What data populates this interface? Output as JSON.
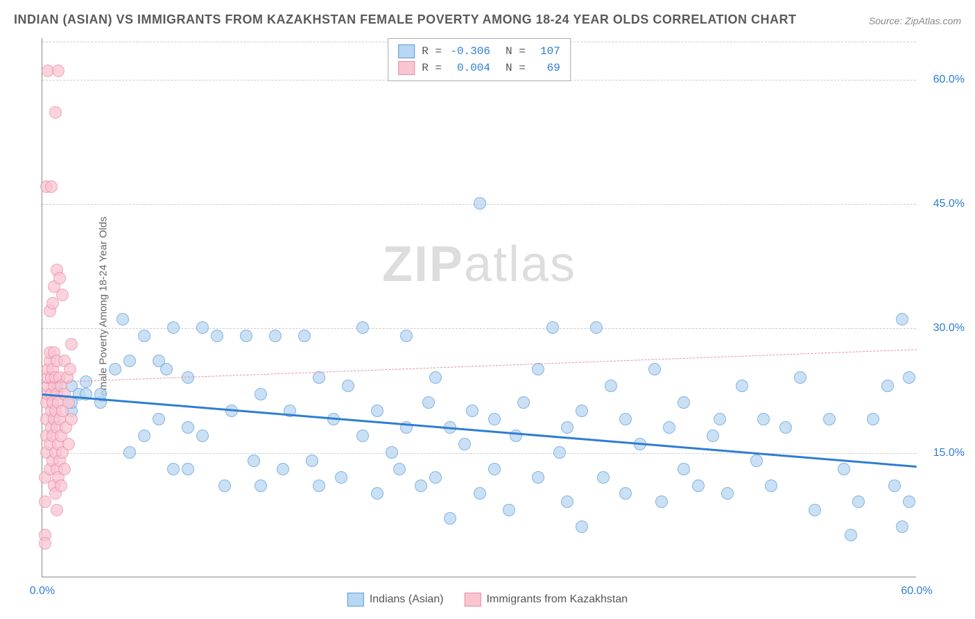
{
  "title": "INDIAN (ASIAN) VS IMMIGRANTS FROM KAZAKHSTAN FEMALE POVERTY AMONG 18-24 YEAR OLDS CORRELATION CHART",
  "source": "Source: ZipAtlas.com",
  "ylabel": "Female Poverty Among 18-24 Year Olds",
  "watermark": "ZIPatlas",
  "chart": {
    "type": "scatter",
    "xlim": [
      0,
      60
    ],
    "ylim": [
      0,
      65
    ],
    "xticks": [
      {
        "v": 0,
        "label": "0.0%",
        "color": "#2d7dd2"
      },
      {
        "v": 60,
        "label": "60.0%",
        "color": "#2d7dd2"
      }
    ],
    "yticks": [
      {
        "v": 15,
        "label": "15.0%",
        "color": "#2d7dd2"
      },
      {
        "v": 30,
        "label": "30.0%",
        "color": "#2d7dd2"
      },
      {
        "v": 45,
        "label": "45.0%",
        "color": "#2d7dd2"
      },
      {
        "v": 60,
        "label": "60.0%",
        "color": "#2d7dd2"
      }
    ],
    "grid_color": "#cccccc",
    "background_color": "#ffffff",
    "point_radius": 9,
    "series": [
      {
        "name": "Indians (Asian)",
        "fill": "#b9d6f2",
        "stroke": "#5b9bd5",
        "R": "-0.306",
        "N": "107",
        "trend": {
          "x1": 0,
          "y1": 22.2,
          "x2": 60,
          "y2": 13.5,
          "color": "#2d7dd2",
          "width": 3,
          "dash": false
        },
        "points": [
          [
            1,
            22
          ],
          [
            1,
            23
          ],
          [
            2,
            20
          ],
          [
            2,
            21
          ],
          [
            2,
            23
          ],
          [
            2.5,
            22
          ],
          [
            3,
            22
          ],
          [
            3,
            23.5
          ],
          [
            4,
            21
          ],
          [
            4,
            22
          ],
          [
            5,
            25
          ],
          [
            5.5,
            31
          ],
          [
            6,
            15
          ],
          [
            6,
            26
          ],
          [
            7,
            17
          ],
          [
            7,
            29
          ],
          [
            8,
            19
          ],
          [
            8,
            26
          ],
          [
            8.5,
            25
          ],
          [
            9,
            13
          ],
          [
            9,
            30
          ],
          [
            10,
            13
          ],
          [
            10,
            18
          ],
          [
            10,
            24
          ],
          [
            11,
            17
          ],
          [
            11,
            30
          ],
          [
            12,
            29
          ],
          [
            12.5,
            11
          ],
          [
            13,
            20
          ],
          [
            14,
            29
          ],
          [
            14.5,
            14
          ],
          [
            15,
            11
          ],
          [
            15,
            22
          ],
          [
            16,
            29
          ],
          [
            16.5,
            13
          ],
          [
            17,
            20
          ],
          [
            18,
            29
          ],
          [
            18.5,
            14
          ],
          [
            19,
            11
          ],
          [
            19,
            24
          ],
          [
            20,
            19
          ],
          [
            20.5,
            12
          ],
          [
            21,
            23
          ],
          [
            22,
            17
          ],
          [
            22,
            30
          ],
          [
            23,
            10
          ],
          [
            23,
            20
          ],
          [
            24,
            15
          ],
          [
            24.5,
            13
          ],
          [
            25,
            18
          ],
          [
            25,
            29
          ],
          [
            26,
            11
          ],
          [
            26.5,
            21
          ],
          [
            27,
            12
          ],
          [
            27,
            24
          ],
          [
            28,
            7
          ],
          [
            28,
            18
          ],
          [
            29,
            16
          ],
          [
            29.5,
            20
          ],
          [
            30,
            10
          ],
          [
            30,
            45
          ],
          [
            31,
            13
          ],
          [
            31,
            19
          ],
          [
            32,
            8
          ],
          [
            32.5,
            17
          ],
          [
            33,
            21
          ],
          [
            34,
            12
          ],
          [
            34,
            25
          ],
          [
            35,
            30
          ],
          [
            35.5,
            15
          ],
          [
            36,
            9
          ],
          [
            36,
            18
          ],
          [
            37,
            6
          ],
          [
            37,
            20
          ],
          [
            38,
            30
          ],
          [
            38.5,
            12
          ],
          [
            39,
            23
          ],
          [
            40,
            10
          ],
          [
            40,
            19
          ],
          [
            41,
            16
          ],
          [
            42,
            25
          ],
          [
            42.5,
            9
          ],
          [
            43,
            18
          ],
          [
            44,
            13
          ],
          [
            44,
            21
          ],
          [
            45,
            11
          ],
          [
            46,
            17
          ],
          [
            46.5,
            19
          ],
          [
            47,
            10
          ],
          [
            48,
            23
          ],
          [
            49,
            14
          ],
          [
            49.5,
            19
          ],
          [
            50,
            11
          ],
          [
            51,
            18
          ],
          [
            52,
            24
          ],
          [
            53,
            8
          ],
          [
            54,
            19
          ],
          [
            55,
            13
          ],
          [
            55.5,
            5
          ],
          [
            56,
            9
          ],
          [
            57,
            19
          ],
          [
            58,
            23
          ],
          [
            58.5,
            11
          ],
          [
            59,
            31
          ],
          [
            59,
            6
          ],
          [
            59.5,
            9
          ],
          [
            59.5,
            24
          ]
        ]
      },
      {
        "name": "Immigrants from Kazakhstan",
        "fill": "#f9c5d1",
        "stroke": "#e88ba8",
        "R": "0.004",
        "N": "69",
        "trend": {
          "x1": 0,
          "y1": 23.5,
          "x2": 60,
          "y2": 27.5,
          "color": "#e88ba8",
          "width": 1,
          "dash": true
        },
        "points": [
          [
            0.2,
            5
          ],
          [
            0.2,
            9
          ],
          [
            0.2,
            12
          ],
          [
            0.3,
            15
          ],
          [
            0.3,
            17
          ],
          [
            0.3,
            19
          ],
          [
            0.3,
            21
          ],
          [
            0.4,
            22
          ],
          [
            0.4,
            23
          ],
          [
            0.4,
            24
          ],
          [
            0.4,
            25
          ],
          [
            0.5,
            26
          ],
          [
            0.5,
            27
          ],
          [
            0.5,
            13
          ],
          [
            0.5,
            16
          ],
          [
            0.6,
            18
          ],
          [
            0.6,
            20
          ],
          [
            0.6,
            22
          ],
          [
            0.6,
            24
          ],
          [
            0.7,
            14
          ],
          [
            0.7,
            17
          ],
          [
            0.7,
            21
          ],
          [
            0.7,
            25
          ],
          [
            0.8,
            11
          ],
          [
            0.8,
            19
          ],
          [
            0.8,
            23
          ],
          [
            0.8,
            27
          ],
          [
            0.9,
            10
          ],
          [
            0.9,
            15
          ],
          [
            0.9,
            20
          ],
          [
            0.9,
            24
          ],
          [
            1.0,
            8
          ],
          [
            1.0,
            13
          ],
          [
            1.0,
            18
          ],
          [
            1.0,
            22
          ],
          [
            1.0,
            26
          ],
          [
            1.1,
            12
          ],
          [
            1.1,
            16
          ],
          [
            1.1,
            21
          ],
          [
            1.2,
            14
          ],
          [
            1.2,
            19
          ],
          [
            1.2,
            24
          ],
          [
            1.3,
            11
          ],
          [
            1.3,
            17
          ],
          [
            1.3,
            23
          ],
          [
            1.4,
            15
          ],
          [
            1.4,
            20
          ],
          [
            1.5,
            13
          ],
          [
            1.5,
            22
          ],
          [
            1.5,
            26
          ],
          [
            1.6,
            18
          ],
          [
            1.7,
            24
          ],
          [
            1.8,
            16
          ],
          [
            1.8,
            21
          ],
          [
            1.9,
            25
          ],
          [
            2.0,
            19
          ],
          [
            2.0,
            28
          ],
          [
            0.5,
            32
          ],
          [
            0.7,
            33
          ],
          [
            0.8,
            35
          ],
          [
            1.0,
            37
          ],
          [
            1.2,
            36
          ],
          [
            1.4,
            34
          ],
          [
            0.3,
            47
          ],
          [
            0.6,
            47
          ],
          [
            0.9,
            56
          ],
          [
            0.4,
            61
          ],
          [
            1.1,
            61
          ],
          [
            0.2,
            4
          ]
        ]
      }
    ]
  },
  "legend_top": {
    "r_label": "R =",
    "n_label": "N ="
  },
  "legend_bottom_labels": [
    "Indians (Asian)",
    "Immigrants from Kazakhstan"
  ]
}
